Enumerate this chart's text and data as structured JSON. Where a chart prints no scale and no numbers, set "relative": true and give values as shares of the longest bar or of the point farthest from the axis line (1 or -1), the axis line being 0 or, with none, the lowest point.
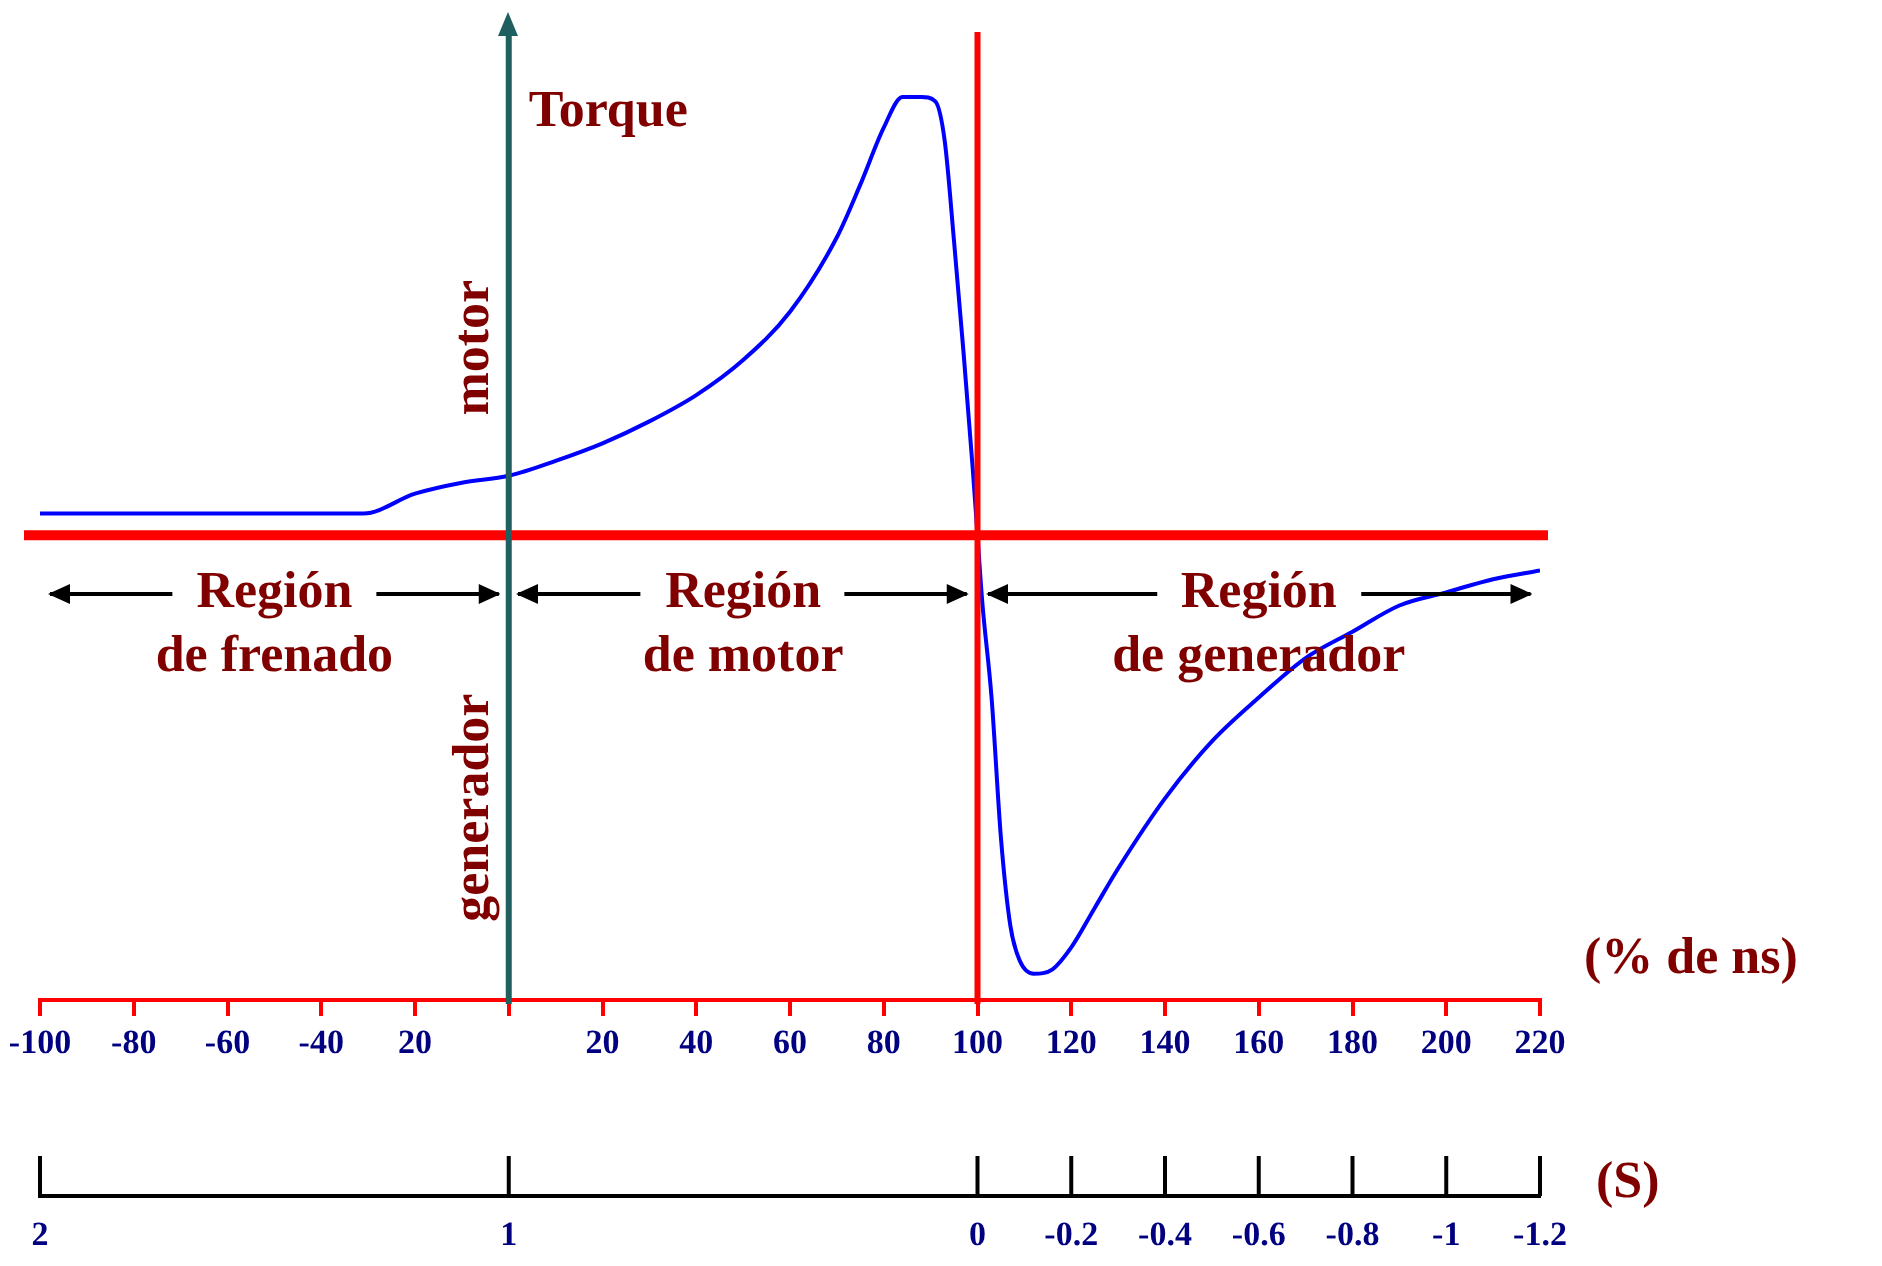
{
  "chart_data": {
    "type": "line",
    "relative": true,
    "ylabel": "Torque",
    "xlabel": "(% de ns)",
    "x2label": "(S)",
    "x": [
      -100,
      -60,
      -40,
      -31,
      -20,
      -10,
      0,
      10,
      20,
      30,
      40,
      50,
      60,
      70,
      75,
      80,
      84,
      88,
      91,
      93,
      95,
      97,
      99,
      100,
      101,
      103,
      105,
      107,
      109,
      112,
      116,
      120,
      125,
      130,
      140,
      150,
      160,
      170,
      180,
      190,
      200,
      210,
      220
    ],
    "series": [
      {
        "color": "#0000ff",
        "values": [
          0.05,
          0.05,
          0.05,
          0.05,
          0.095,
          0.12,
          0.136,
          0.17,
          0.21,
          0.26,
          0.32,
          0.4,
          0.51,
          0.68,
          0.8,
          0.93,
          1,
          1,
          0.99,
          0.9,
          0.67,
          0.42,
          0.15,
          0,
          -0.15,
          -0.37,
          -0.69,
          -0.89,
          -0.97,
          -1,
          -0.99,
          -0.94,
          -0.85,
          -0.76,
          -0.6,
          -0.47,
          -0.37,
          -0.28,
          -0.22,
          -0.16,
          -0.13,
          -0.1,
          -0.08
        ]
      }
    ],
    "xlim": [
      -100,
      220
    ],
    "xticks": [
      -100,
      -80,
      -60,
      -40,
      {
        "value": -20,
        "label": "20"
      },
      {
        "value": 0,
        "label": null
      },
      20,
      40,
      60,
      80,
      100,
      120,
      140,
      160,
      180,
      200,
      220
    ],
    "x2lim": [
      2,
      -1.2
    ],
    "x2ticks": [
      2,
      1,
      0,
      -0.2,
      -0.4,
      -0.6,
      -0.8,
      -1,
      -1.2
    ],
    "ref_lines": [
      {
        "axis": "y",
        "value": 0,
        "color": "#ff0000"
      },
      {
        "axis": "x",
        "value": 100,
        "color": "#ff0000"
      },
      {
        "axis": "x",
        "value": 0,
        "color": "#1f5f5f"
      }
    ],
    "annotations": [
      "Región de frenado",
      "Región de motor",
      "Región de generador",
      "motor",
      "generador"
    ],
    "legend": false,
    "grid": false,
    "marker": "none",
    "line_style": "solid"
  }
}
